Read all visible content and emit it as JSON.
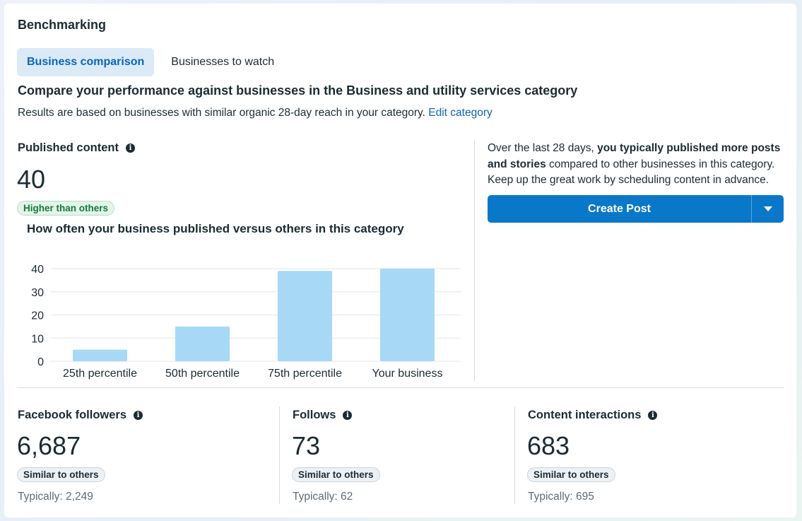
{
  "header": {
    "title": "Benchmarking"
  },
  "tabs": [
    {
      "label": "Business comparison"
    },
    {
      "label": "Businesses to watch"
    }
  ],
  "section": {
    "title": "Compare your performance against businesses in the Business and utility services category",
    "description": "Results are based on businesses with similar organic 28-day reach in your category.",
    "edit_link": "Edit category"
  },
  "published": {
    "label": "Published content",
    "value": "40",
    "badge": "Higher than others",
    "chart_title": "How often your business published versus others in this category"
  },
  "insight": {
    "prefix": "Over the last 28 days, ",
    "bold": "you typically published more posts and stories",
    "suffix": " compared to other businesses in this category. Keep up the great work by scheduling content in advance.",
    "button_label": "Create Post"
  },
  "metrics": [
    {
      "label": "Facebook followers",
      "value": "6,687",
      "badge": "Similar to others",
      "typical": "Typically: 2,249"
    },
    {
      "label": "Follows",
      "value": "73",
      "badge": "Similar to others",
      "typical": "Typically: 62"
    },
    {
      "label": "Content interactions",
      "value": "683",
      "badge": "Similar to others",
      "typical": "Typically: 695"
    }
  ],
  "colors": {
    "bar": "#a7d9f7",
    "accent": "#0a78c8",
    "grid": "#e3e6ea"
  },
  "icons": {
    "info": "info-icon",
    "dropdown": "chevron-down-icon"
  },
  "chart_data": {
    "type": "bar",
    "categories": [
      "25th percentile",
      "50th percentile",
      "75th percentile",
      "Your business"
    ],
    "values": [
      5,
      15,
      39,
      40
    ],
    "yticks": [
      0,
      10,
      20,
      30,
      40
    ],
    "ylim": [
      0,
      40
    ],
    "grid": true
  }
}
